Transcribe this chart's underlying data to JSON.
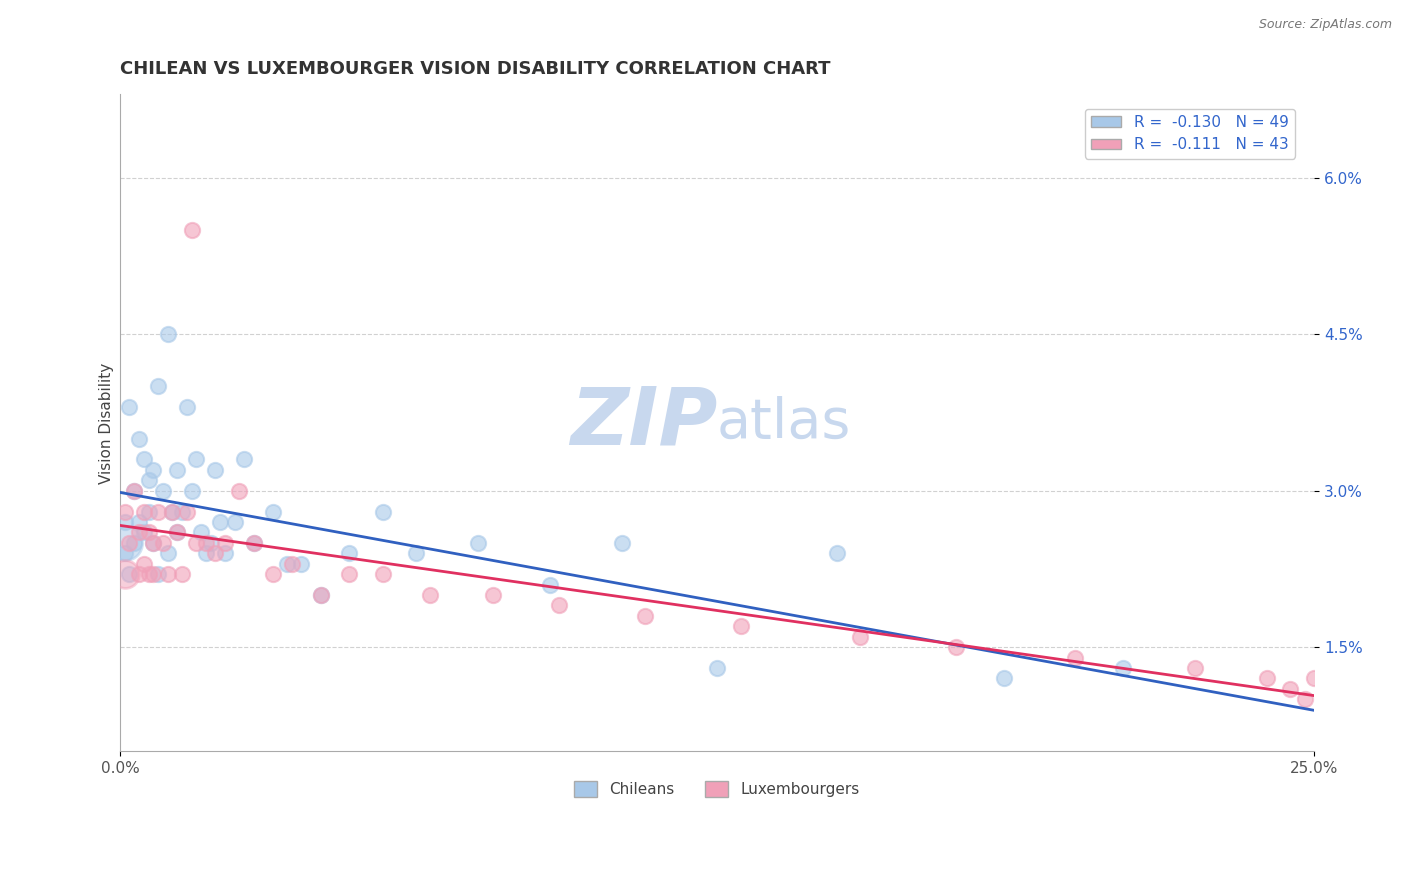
{
  "title": "CHILEAN VS LUXEMBOURGER VISION DISABILITY CORRELATION CHART",
  "source_text": "Source: ZipAtlas.com",
  "xlabel": "",
  "ylabel": "Vision Disability",
  "xlim": [
    0.0,
    0.25
  ],
  "ylim": [
    0.005,
    0.068
  ],
  "yticks": [
    0.015,
    0.03,
    0.045,
    0.06
  ],
  "ytick_labels": [
    "1.5%",
    "3.0%",
    "4.5%",
    "6.0%"
  ],
  "xticks": [
    0.0,
    0.25
  ],
  "xtick_labels": [
    "0.0%",
    "25.0%"
  ],
  "legend_R1": "-0.130",
  "legend_N1": "49",
  "legend_R2": "-0.111",
  "legend_N2": "43",
  "color_chilean": "#a8c8e8",
  "color_luxembourger": "#f0a0b8",
  "color_trend_chilean": "#3060c0",
  "color_trend_luxembourger": "#e03060",
  "watermark_color": "#c8d8ee",
  "background_color": "#ffffff",
  "grid_color": "#cccccc",
  "chilean_x": [
    0.001,
    0.001,
    0.002,
    0.002,
    0.003,
    0.003,
    0.004,
    0.004,
    0.005,
    0.005,
    0.006,
    0.006,
    0.007,
    0.007,
    0.008,
    0.008,
    0.009,
    0.01,
    0.01,
    0.011,
    0.012,
    0.012,
    0.013,
    0.014,
    0.015,
    0.016,
    0.017,
    0.018,
    0.019,
    0.02,
    0.021,
    0.022,
    0.024,
    0.026,
    0.028,
    0.032,
    0.035,
    0.038,
    0.042,
    0.048,
    0.055,
    0.062,
    0.075,
    0.09,
    0.105,
    0.125,
    0.15,
    0.185,
    0.21
  ],
  "chilean_y": [
    0.027,
    0.024,
    0.038,
    0.022,
    0.03,
    0.025,
    0.035,
    0.027,
    0.033,
    0.026,
    0.031,
    0.028,
    0.032,
    0.025,
    0.04,
    0.022,
    0.03,
    0.045,
    0.024,
    0.028,
    0.032,
    0.026,
    0.028,
    0.038,
    0.03,
    0.033,
    0.026,
    0.024,
    0.025,
    0.032,
    0.027,
    0.024,
    0.027,
    0.033,
    0.025,
    0.028,
    0.023,
    0.023,
    0.02,
    0.024,
    0.028,
    0.024,
    0.025,
    0.021,
    0.025,
    0.013,
    0.024,
    0.012,
    0.013
  ],
  "chilean_sizes": [
    60,
    60,
    60,
    60,
    60,
    60,
    60,
    60,
    60,
    60,
    60,
    60,
    60,
    60,
    60,
    60,
    60,
    60,
    60,
    60,
    60,
    60,
    60,
    60,
    60,
    60,
    60,
    60,
    60,
    60,
    60,
    60,
    60,
    60,
    60,
    60,
    60,
    60,
    60,
    60,
    60,
    60,
    60,
    60,
    60,
    60,
    60,
    60,
    200
  ],
  "luxembourger_x": [
    0.001,
    0.002,
    0.003,
    0.004,
    0.004,
    0.005,
    0.005,
    0.006,
    0.006,
    0.007,
    0.007,
    0.008,
    0.009,
    0.01,
    0.011,
    0.012,
    0.013,
    0.014,
    0.015,
    0.016,
    0.018,
    0.02,
    0.022,
    0.025,
    0.028,
    0.032,
    0.036,
    0.042,
    0.048,
    0.055,
    0.065,
    0.078,
    0.092,
    0.11,
    0.13,
    0.155,
    0.175,
    0.2,
    0.225,
    0.24,
    0.245,
    0.248,
    0.25
  ],
  "luxembourger_y": [
    0.028,
    0.025,
    0.03,
    0.026,
    0.022,
    0.028,
    0.023,
    0.026,
    0.022,
    0.025,
    0.022,
    0.028,
    0.025,
    0.022,
    0.028,
    0.026,
    0.022,
    0.028,
    0.055,
    0.025,
    0.025,
    0.024,
    0.025,
    0.03,
    0.025,
    0.022,
    0.023,
    0.02,
    0.022,
    0.022,
    0.02,
    0.02,
    0.019,
    0.018,
    0.017,
    0.016,
    0.015,
    0.014,
    0.013,
    0.012,
    0.011,
    0.01,
    0.012
  ],
  "title_fontsize": 13,
  "label_fontsize": 11,
  "tick_fontsize": 11,
  "legend_fontsize": 11
}
